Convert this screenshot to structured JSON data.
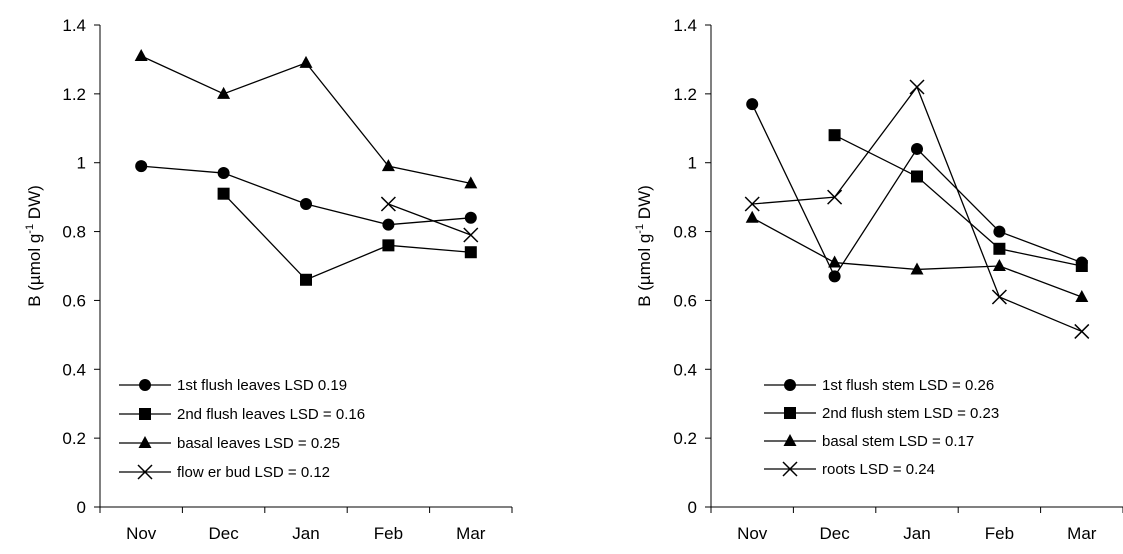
{
  "chart_data": [
    {
      "type": "line",
      "title": "",
      "xlabel": "",
      "ylabel": "B (µmol g-1 DW)",
      "ylabel_parts": [
        "B (µmol g",
        "-1",
        " DW)"
      ],
      "categories": [
        "Nov",
        "Dec",
        "Jan",
        "Feb",
        "Mar"
      ],
      "ylim": [
        0,
        1.4
      ],
      "yticks": [
        0,
        0.2,
        0.4,
        0.6,
        0.8,
        1,
        1.2,
        1.4
      ],
      "ytick_labels": [
        "0",
        "0.2",
        "0.4",
        "0.6",
        "0.8",
        "1",
        "1.2",
        "1.4"
      ],
      "grid": false,
      "legend_position": "bottom-left",
      "series": [
        {
          "name": "1st flush leaves LSD 0.19",
          "marker": "circle",
          "values": [
            0.99,
            0.97,
            0.88,
            0.82,
            0.84
          ]
        },
        {
          "name": "2nd flush leaves LSD = 0.16",
          "marker": "square",
          "values": [
            null,
            0.91,
            0.66,
            0.76,
            0.74
          ]
        },
        {
          "name": "basal leaves LSD = 0.25",
          "marker": "triangle",
          "values": [
            1.31,
            1.2,
            1.29,
            0.99,
            0.94
          ]
        },
        {
          "name": "flow er bud LSD = 0.12",
          "marker": "x",
          "values": [
            null,
            null,
            null,
            0.88,
            0.79
          ]
        }
      ]
    },
    {
      "type": "line",
      "title": "",
      "xlabel": "",
      "ylabel": "B (µmol g-1 DW)",
      "ylabel_parts": [
        "B (µmol g",
        "-1",
        " DW)"
      ],
      "categories": [
        "Nov",
        "Dec",
        "Jan",
        "Feb",
        "Mar"
      ],
      "ylim": [
        0,
        1.4
      ],
      "yticks": [
        0,
        0.2,
        0.4,
        0.6,
        0.8,
        1,
        1.2,
        1.4
      ],
      "ytick_labels": [
        "0",
        "0.2",
        "0.4",
        "0.6",
        "0.8",
        "1",
        "1.2",
        "1.4"
      ],
      "grid": false,
      "legend_position": "bottom-left",
      "series": [
        {
          "name": "1st flush stem LSD = 0.26",
          "marker": "circle",
          "values": [
            1.17,
            0.67,
            1.04,
            0.8,
            0.71
          ]
        },
        {
          "name": "2nd flush stem LSD = 0.23",
          "marker": "square",
          "values": [
            null,
            1.08,
            0.96,
            0.75,
            0.7
          ]
        },
        {
          "name": "basal stem LSD = 0.17",
          "marker": "triangle",
          "values": [
            0.84,
            0.71,
            0.69,
            0.7,
            0.61
          ]
        },
        {
          "name": "roots LSD = 0.24",
          "marker": "x",
          "values": [
            0.88,
            0.9,
            1.22,
            0.61,
            0.51
          ]
        }
      ]
    }
  ]
}
